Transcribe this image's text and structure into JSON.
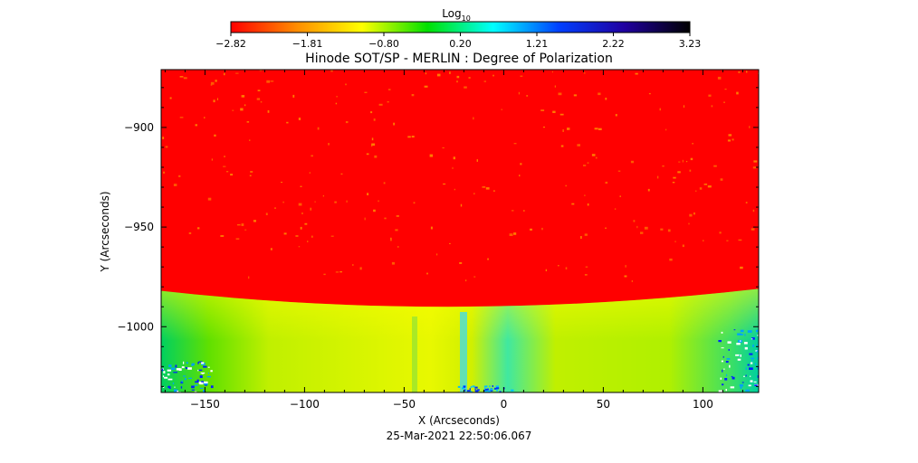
{
  "colorbar": {
    "label_main": "Log",
    "label_sub": "10",
    "ticks": [
      "-2.82",
      "-1.81",
      "-0.80",
      "0.20",
      "1.21",
      "2.22",
      "3.23"
    ],
    "stops": [
      "#ff0000",
      "#ff8c00",
      "#ffff00",
      "#00e000",
      "#00ffff",
      "#0040ff",
      "#2000a0",
      "#000000"
    ]
  },
  "chart_data": {
    "type": "heatmap",
    "title": "Hinode SOT/SP - MERLIN : Degree of Polarization",
    "xlabel": "X (Arcseconds)",
    "ylabel": "Y (Arcseconds)",
    "xlim": [
      -172,
      128
    ],
    "ylim": [
      -1033,
      -871
    ],
    "x_ticks": [
      -150,
      -100,
      -50,
      0,
      50,
      100
    ],
    "y_ticks": [
      -900,
      -950,
      -1000
    ],
    "x_tick_labels": [
      "−150",
      "−100",
      "−50",
      "0",
      "50",
      "100"
    ],
    "y_tick_labels": [
      "−900",
      "−950",
      "−1000"
    ],
    "color_scale": "log10",
    "color_range": [
      -2.82,
      3.23
    ],
    "limb_y": [
      -982,
      -993,
      -981
    ],
    "limb_x": [
      -172,
      -25,
      128
    ],
    "disk_value": -2.82,
    "offlimb_value_range": [
      -0.8,
      0.5
    ],
    "timestamp": "25-Mar-2021 22:50:06.067"
  }
}
